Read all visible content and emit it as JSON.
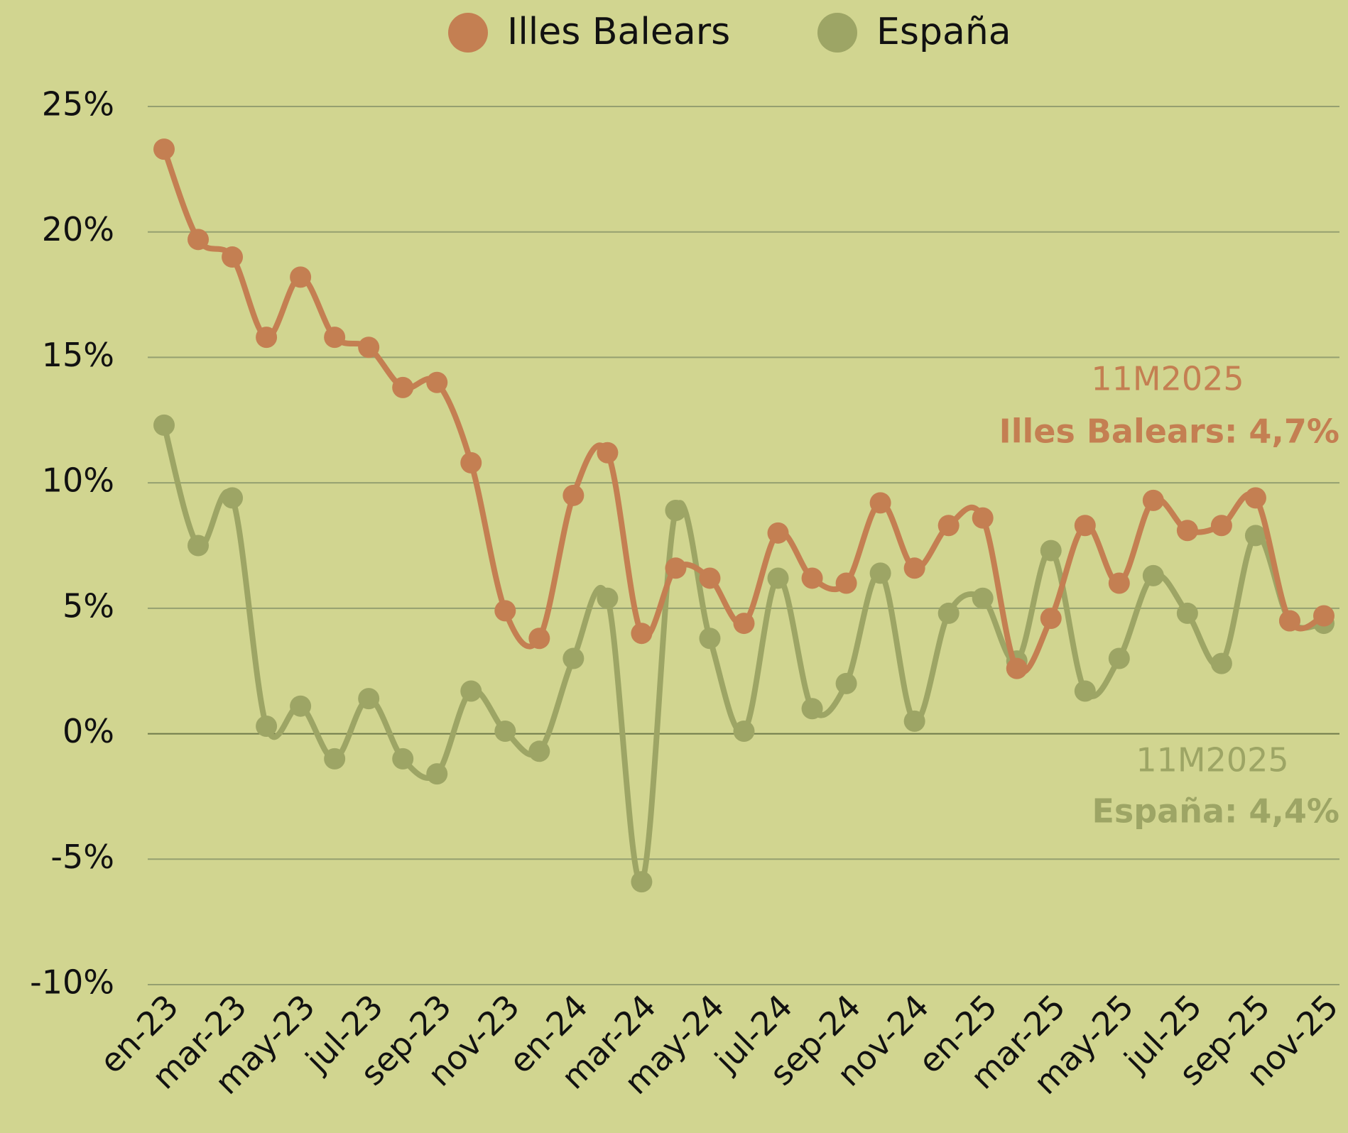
{
  "chart_data": {
    "type": "line",
    "categories": [
      "en-23",
      null,
      "mar-23",
      null,
      "may-23",
      null,
      "jul-23",
      null,
      "sep-23",
      null,
      "nov-23",
      null,
      "en-24",
      null,
      "mar-24",
      null,
      "may-24",
      null,
      "jul-24",
      null,
      "sep-24",
      null,
      "nov-24",
      null,
      "en-25",
      null,
      "mar-25",
      null,
      "may-25",
      null,
      "jul-25",
      null,
      "sep-25",
      null,
      "nov-25"
    ],
    "series": [
      {
        "name": "Illes Balears",
        "color": "#c47f52",
        "values": [
          23.3,
          19.7,
          19.0,
          15.8,
          18.2,
          15.8,
          15.4,
          13.8,
          14.0,
          10.8,
          4.9,
          3.8,
          9.5,
          11.2,
          4.0,
          6.6,
          6.2,
          4.4,
          8.0,
          6.2,
          6.0,
          9.2,
          6.6,
          8.3,
          8.6,
          2.6,
          4.6,
          8.3,
          6.0,
          9.3,
          8.1,
          8.3,
          9.4,
          4.5,
          4.7
        ]
      },
      {
        "name": "España",
        "color": "#9da565",
        "values": [
          12.3,
          7.5,
          9.4,
          0.3,
          1.1,
          -1.0,
          1.4,
          -1.0,
          -1.6,
          1.7,
          0.1,
          -0.7,
          3.0,
          5.4,
          -5.9,
          8.9,
          3.8,
          0.1,
          6.2,
          1.0,
          2.0,
          6.4,
          0.5,
          4.8,
          5.4,
          2.9,
          7.3,
          1.7,
          3.0,
          6.3,
          4.8,
          2.8,
          7.9,
          4.5,
          4.4
        ]
      }
    ],
    "ylim": [
      -10,
      25
    ],
    "yticks": [
      {
        "value": -10,
        "label": "-10%"
      },
      {
        "value": -5,
        "label": "-5%"
      },
      {
        "value": 0,
        "label": "0%"
      },
      {
        "value": 5,
        "label": "5%"
      },
      {
        "value": 10,
        "label": "10%"
      },
      {
        "value": 15,
        "label": "15%"
      },
      {
        "value": 20,
        "label": "20%"
      },
      {
        "value": 25,
        "label": "25%"
      }
    ],
    "grid": true,
    "legend": "top",
    "annotations": [
      {
        "text": "11M2025",
        "color": "#c47f52"
      },
      {
        "text": "Illes Balears: 4,7%",
        "color": "#c47f52"
      },
      {
        "text": "11M2025",
        "color": "#9da565"
      },
      {
        "text": "España: 4,4%",
        "color": "#9da565"
      }
    ]
  }
}
